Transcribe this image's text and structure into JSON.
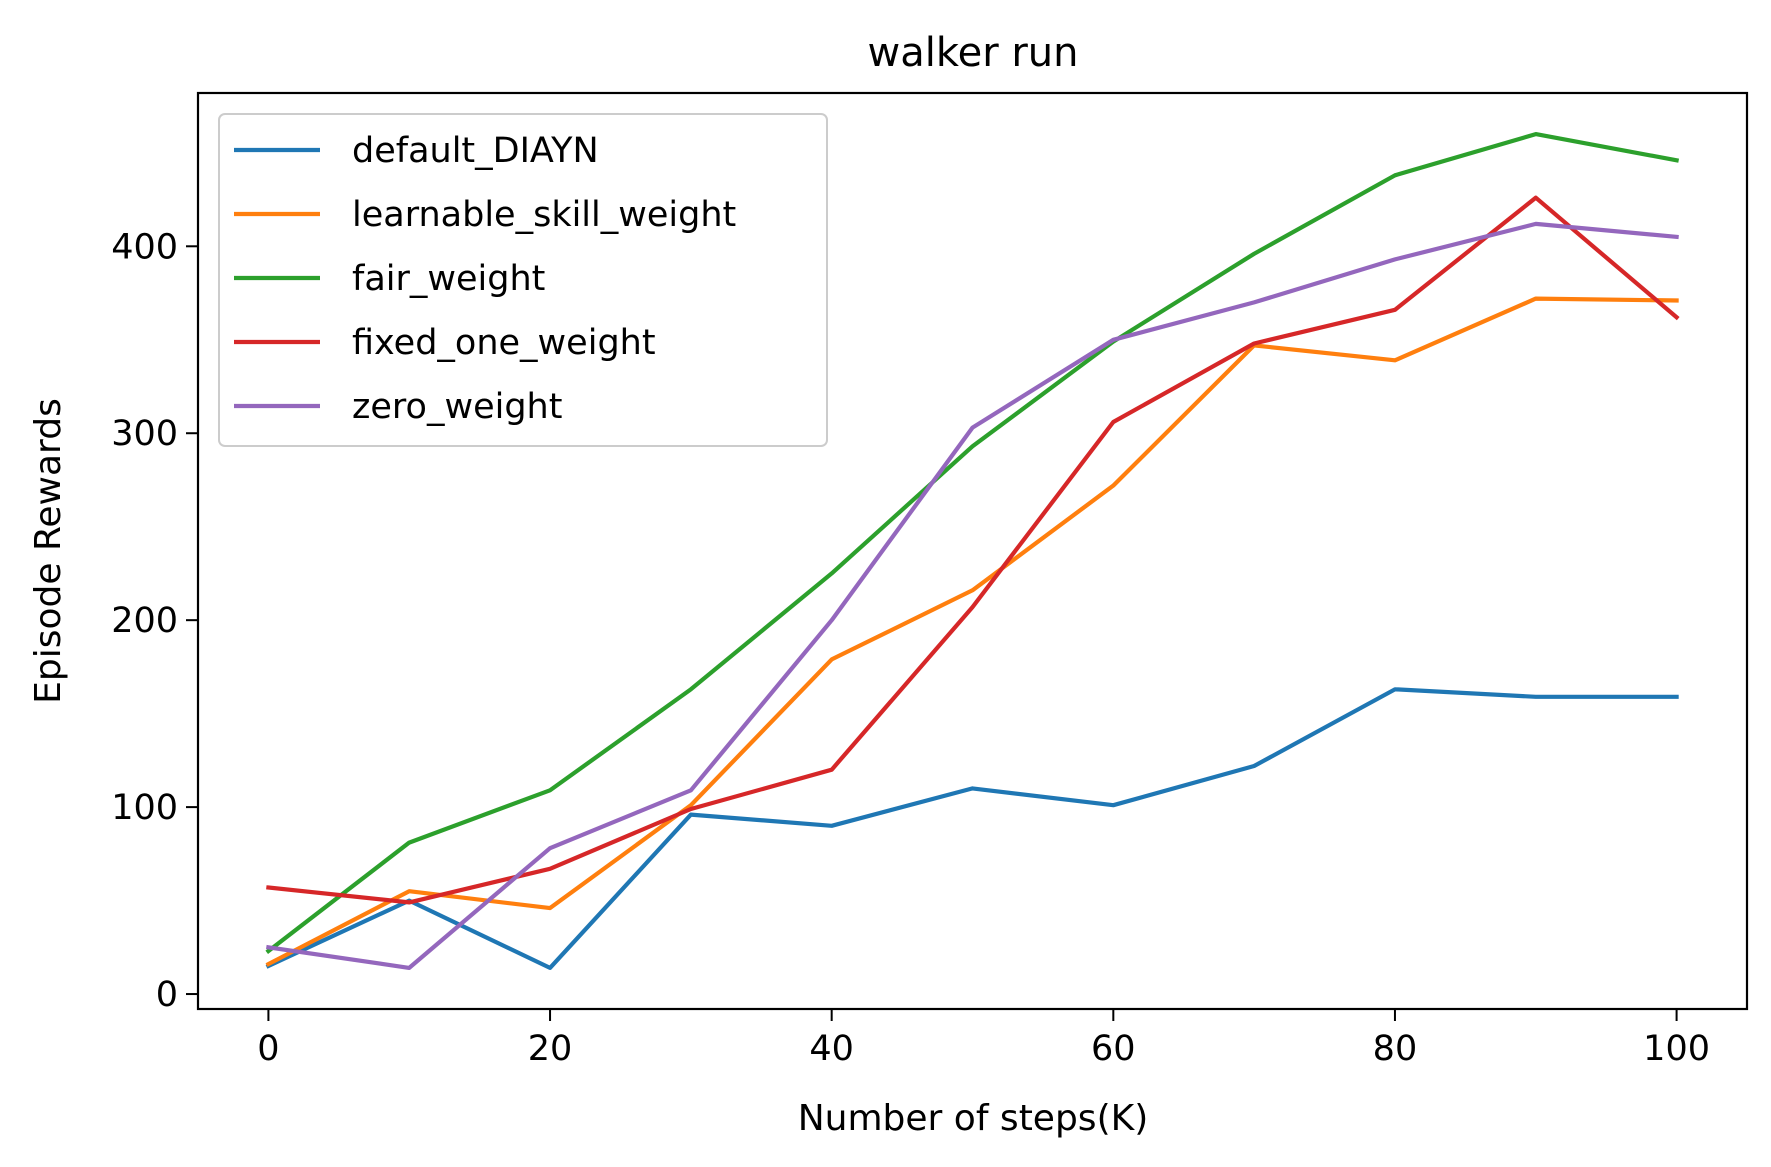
{
  "chart_data": {
    "type": "line",
    "title": "walker run",
    "xlabel": "Number of steps(K)",
    "ylabel": "Episode Rewards",
    "x": [
      0,
      10,
      20,
      30,
      40,
      50,
      60,
      70,
      80,
      90,
      100
    ],
    "xlim": [
      -5,
      105
    ],
    "ylim": [
      -8,
      482
    ],
    "xticks": [
      0,
      20,
      40,
      60,
      80,
      100
    ],
    "yticks": [
      0,
      100,
      200,
      300,
      400
    ],
    "grid": false,
    "legend_position": "upper-left",
    "series": [
      {
        "name": "default_DIAYN",
        "color": "#1f77b4",
        "values": [
          15,
          50,
          14,
          96,
          90,
          110,
          101,
          122,
          163,
          159,
          159
        ]
      },
      {
        "name": "learnable_skill_weight",
        "color": "#ff7f0e",
        "values": [
          16,
          55,
          46,
          101,
          179,
          216,
          272,
          347,
          339,
          372,
          371
        ]
      },
      {
        "name": "fair_weight",
        "color": "#2ca02c",
        "values": [
          23,
          81,
          109,
          163,
          225,
          293,
          349,
          396,
          438,
          460,
          446
        ]
      },
      {
        "name": "fixed_one_weight",
        "color": "#d62728",
        "values": [
          57,
          49,
          67,
          99,
          120,
          207,
          306,
          348,
          366,
          426,
          362
        ]
      },
      {
        "name": "zero_weight",
        "color": "#9467bd",
        "values": [
          25,
          14,
          78,
          109,
          200,
          303,
          350,
          370,
          393,
          412,
          405
        ]
      }
    ]
  }
}
